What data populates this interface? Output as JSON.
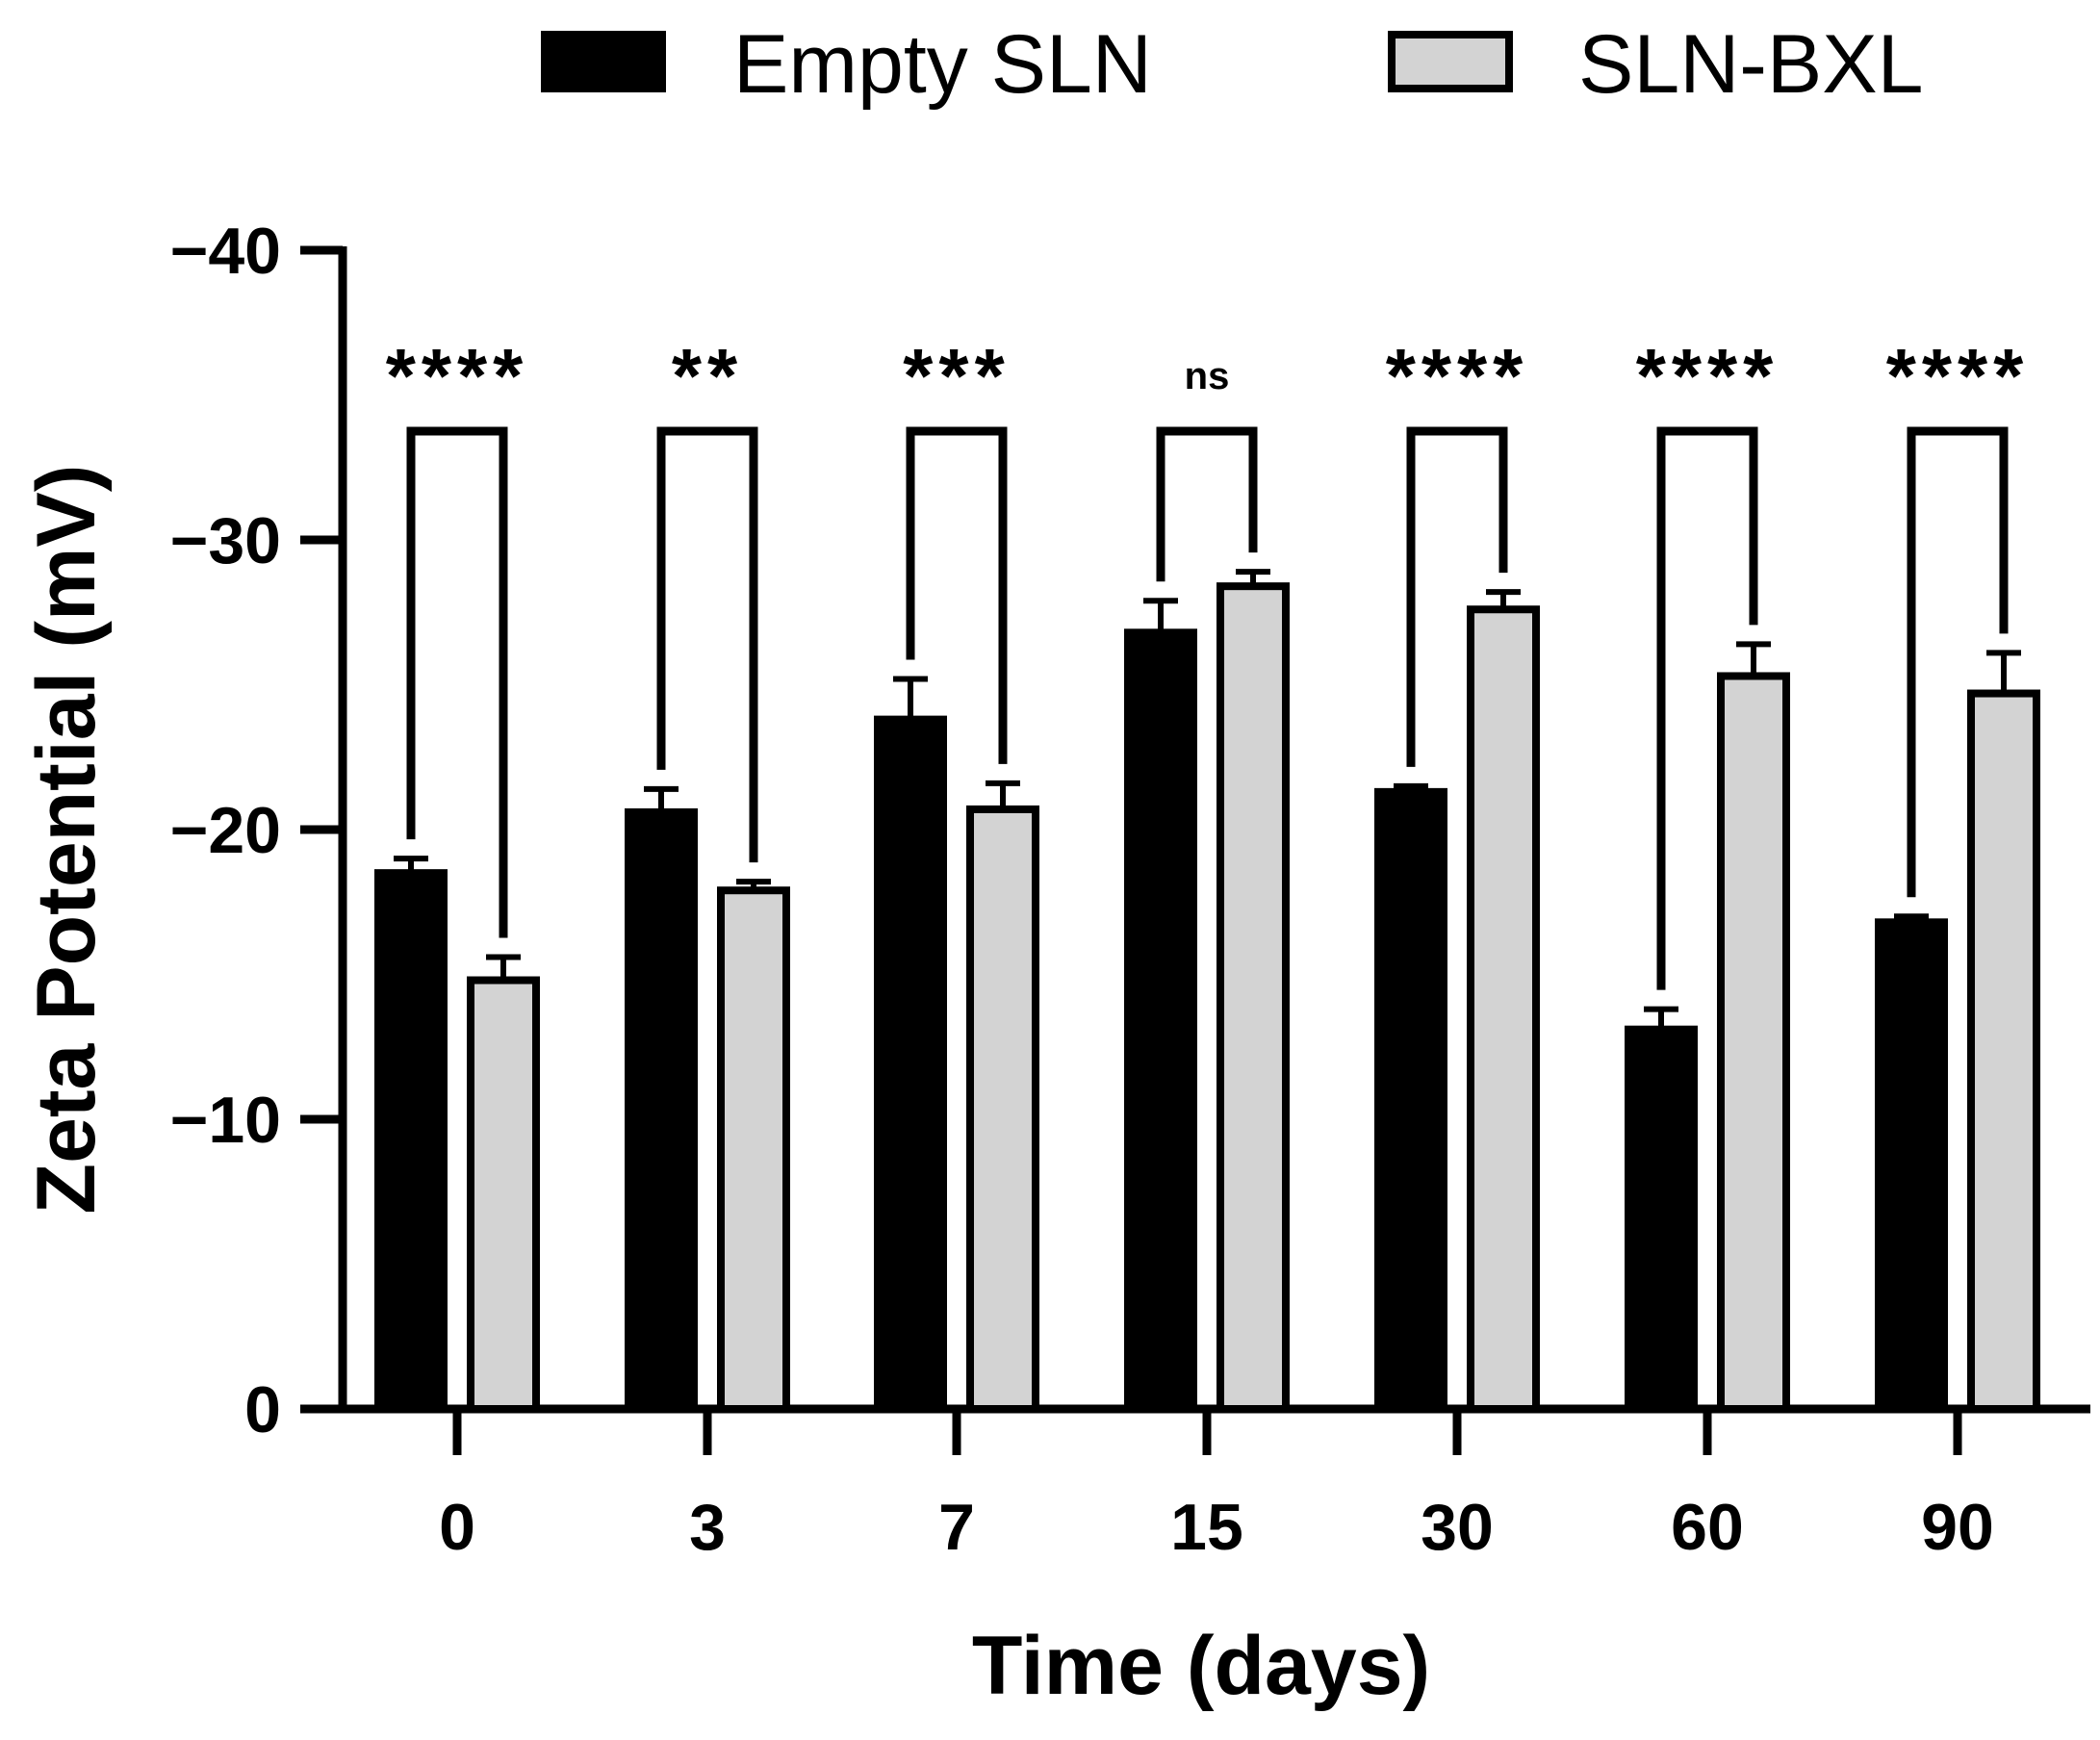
{
  "chart_data": {
    "type": "bar",
    "title": "",
    "xlabel": "Time (days)",
    "ylabel": "Zeta Potential (mV)",
    "ylim": [
      0,
      -40
    ],
    "yticks": [
      0,
      -10,
      -20,
      -30,
      -40
    ],
    "yticks_labels": [
      "0",
      "−10",
      "−20",
      "−30",
      "−40"
    ],
    "categories": [
      "0",
      "3",
      "7",
      "15",
      "30",
      "60",
      "90"
    ],
    "series": [
      {
        "name": "Empty SLN",
        "color": "#000000",
        "values": [
          -18.5,
          -20.6,
          -23.8,
          -26.8,
          -21.3,
          -13.1,
          -16.8
        ],
        "errors": [
          0.5,
          0.8,
          1.4,
          1.1,
          0.2,
          0.7,
          0.2
        ]
      },
      {
        "name": "SLN-BXL",
        "color": "#d3d3d3",
        "values": [
          -14.8,
          -17.9,
          -20.7,
          -28.4,
          -27.6,
          -25.3,
          -24.7
        ],
        "errors": [
          0.8,
          0.3,
          0.9,
          0.5,
          0.6,
          1.1,
          1.4
        ]
      }
    ],
    "significance": [
      "****",
      "**",
      "***",
      "ns",
      "****",
      "****",
      "****"
    ],
    "legend": {
      "placement": "top",
      "entries": [
        "Empty SLN",
        "SLN-BXL"
      ]
    }
  }
}
